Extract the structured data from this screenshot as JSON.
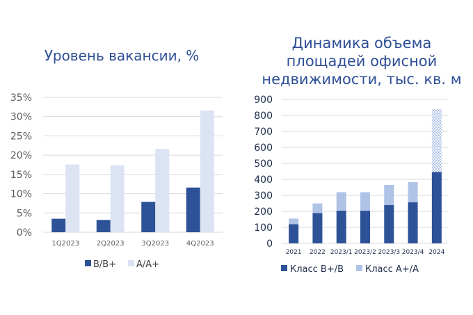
{
  "chart_data": [
    {
      "type": "bar",
      "title": "Уровень вакансии, %",
      "categories": [
        "1Q2023",
        "2Q2023",
        "3Q2023",
        "4Q2023"
      ],
      "series": [
        {
          "name": "B/B+",
          "values": [
            3.5,
            3.2,
            7.9,
            11.6
          ],
          "color": "#2D5297"
        },
        {
          "name": "A/A+",
          "values": [
            17.6,
            17.4,
            21.6,
            31.6
          ],
          "color": "#DCE3F2"
        }
      ],
      "ylim": [
        0,
        35
      ],
      "yticks": [
        "0%",
        "5%",
        "10%",
        "15%",
        "20%",
        "25%",
        "30%",
        "35%"
      ],
      "grid": true,
      "legend": "bottom"
    },
    {
      "type": "bar",
      "stacked": true,
      "title": "Динамика объема площадей офисной недвижимости, тыс. кв. м",
      "title_lines": [
        "Динамика объема",
        "площадей офисной",
        "недвижимости, тыс. кв. м"
      ],
      "categories": [
        "2021",
        "2022",
        "2023/1",
        "2023/2",
        "2023/3",
        "2023/4",
        "2024"
      ],
      "series": [
        {
          "name": "Класс B+/B",
          "values": [
            120,
            190,
            205,
            205,
            240,
            257,
            447
          ],
          "color": "#2D5297"
        },
        {
          "name": "Класс A+/A",
          "values": [
            35,
            60,
            115,
            115,
            125,
            126,
            393
          ],
          "color": "#AFC3E6"
        }
      ],
      "patterned_category": "2024",
      "ylim": [
        0,
        900
      ],
      "yticks": [
        "0",
        "100",
        "200",
        "300",
        "400",
        "500",
        "600",
        "700",
        "800",
        "900"
      ],
      "grid": true,
      "legend": "bottom"
    }
  ]
}
